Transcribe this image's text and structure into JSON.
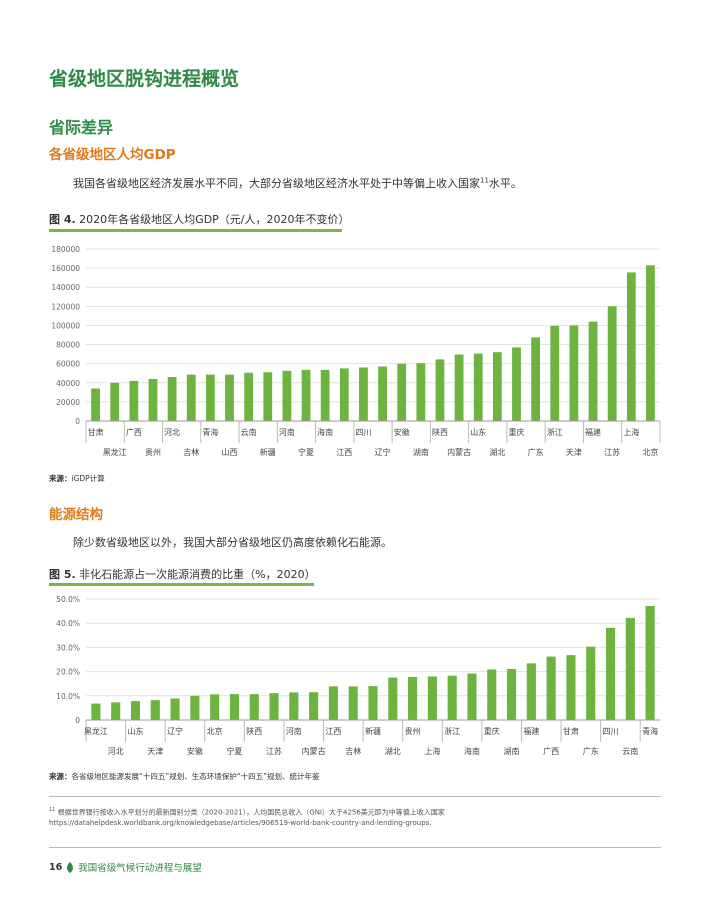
{
  "page": {
    "title": "省级地区脱钩进程概览",
    "section": "省际差异",
    "sub1": "各省级地区人均GDP",
    "para1": "我国各省级地区经济发展水平不同，大部分省级地区经济水平处于中等偏上收入国家",
    "para1_sup": "11",
    "para1_end": "水平。",
    "fig4_label": "图 4.",
    "fig4_title": "2020年各省级地区人均GDP（元/人，2020年不变价）",
    "fig4_source_label": "来源：",
    "fig4_source": "iGDP计算",
    "sub2": "能源结构",
    "para2": "除少数省级地区以外，我国大部分省级地区仍高度依赖化石能源。",
    "fig5_label": "图 5.",
    "fig5_title": "非化石能源占一次能源消费的比重（%，2020）",
    "fig5_source_label": "来源：",
    "fig5_source": "各省级地区能源发展“十四五”规划、生态环境保护“十四五”规划、统计年鉴",
    "footnote_num": "11",
    "footnote": "根据世界银行按收入水平划分的最新国别分类（2020-2021），人均国民总收入（GNI）大于4256美元即为中等偏上收入国家https://datahelpdesk.worldbank.org/knowledgebase/articles/906519-world-bank-country-and-lending-groups.",
    "page_number": "16",
    "footer_title": "我国省级气候行动进程与展望",
    "colors": {
      "green": "#2e8b45",
      "bar": "#6cb33f",
      "orange": "#e07b1a"
    },
    "footer_icon": "leaf-icon"
  },
  "chart_data": [
    {
      "type": "bar",
      "categories": [
        "甘肃",
        "黑龙江",
        "广西",
        "贵州",
        "河北",
        "吉林",
        "青海",
        "山西",
        "云南",
        "新疆",
        "河南",
        "宁夏",
        "海南",
        "江西",
        "四川",
        "辽宁",
        "安徽",
        "湖南",
        "陕西",
        "内蒙古",
        "山东",
        "湖北",
        "重庆",
        "广东",
        "浙江",
        "天津",
        "福建",
        "江苏",
        "上海",
        "北京"
      ],
      "values": [
        34000,
        40000,
        42000,
        44000,
        46000,
        48500,
        48500,
        48500,
        50500,
        51000,
        52500,
        53500,
        53500,
        55000,
        56000,
        57000,
        60000,
        60500,
        64500,
        69500,
        70500,
        72000,
        77000,
        87500,
        99500,
        100000,
        104000,
        120000,
        155500,
        163000
      ],
      "yticks": [
        0,
        20000,
        40000,
        60000,
        80000,
        100000,
        120000,
        140000,
        160000,
        180000
      ],
      "ylim": [
        0,
        180000
      ],
      "grid": true
    },
    {
      "type": "bar",
      "categories": [
        "黑龙江",
        "河北",
        "山东",
        "天津",
        "辽宁",
        "安徽",
        "北京",
        "宁夏",
        "陕西",
        "江苏",
        "河南",
        "内蒙古",
        "江西",
        "吉林",
        "新疆",
        "湖北",
        "贵州",
        "上海",
        "浙江",
        "海南",
        "重庆",
        "湖南",
        "福建",
        "广西",
        "甘肃",
        "广东",
        "四川",
        "云南",
        "青海"
      ],
      "values": [
        6.8,
        7.3,
        7.8,
        8.2,
        8.9,
        10.0,
        10.6,
        10.7,
        10.7,
        11.1,
        11.4,
        11.5,
        13.9,
        13.9,
        14.0,
        17.5,
        17.8,
        18.0,
        18.3,
        19.2,
        20.9,
        21.1,
        23.4,
        26.2,
        26.8,
        30.3,
        38.1,
        42.2,
        47.1
      ],
      "yticks": [
        "0",
        "10.0%",
        "20.0%",
        "30.0%",
        "40.0%",
        "50.0%"
      ],
      "ylim": [
        0,
        50
      ],
      "grid": true
    }
  ]
}
